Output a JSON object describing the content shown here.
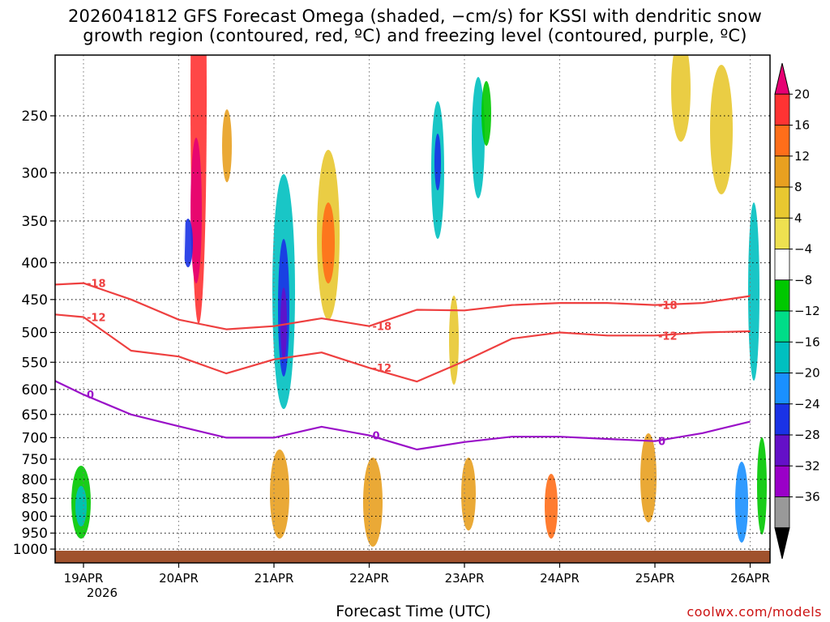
{
  "title_line1": "2026041812 GFS Forecast Omega (shaded, −cm/s) for KSSI with dendritic snow",
  "title_line2": "growth region (contoured, red, ºC) and freezing level (contoured, purple, ºC)",
  "xlabel": "Forecast Time (UTC)",
  "credit": "coolwx.com/models",
  "chart_data": {
    "type": "heatmap",
    "x_ticks": [
      "19APR",
      "20APR",
      "21APR",
      "22APR",
      "23APR",
      "24APR",
      "25APR",
      "26APR"
    ],
    "x_year": "2026",
    "x_range": [
      "2026-04-18T12",
      "2026-04-26T00"
    ],
    "y_ticks": [
      250,
      300,
      350,
      400,
      450,
      500,
      550,
      600,
      650,
      700,
      750,
      800,
      850,
      900,
      950,
      1000
    ],
    "y_range_hpa": [
      1030,
      200
    ],
    "colorbar": {
      "labels": [
        "20",
        "16",
        "12",
        "8",
        "4",
        "−4",
        "−8",
        "−12",
        "−16",
        "−20",
        "−24",
        "−28",
        "−32",
        "−36"
      ],
      "colors": [
        "#e60073",
        "#ff3333",
        "#ff6e1a",
        "#e8a020",
        "#e8c830",
        "#eee050",
        "#ffffff",
        "#00c800",
        "#00dd88",
        "#00c0c0",
        "#1a90ff",
        "#1a32e6",
        "#6410c8",
        "#9a00c8",
        "#999999",
        "#000000"
      ]
    },
    "contours": {
      "dendritic_red": [
        {
          "label": "-18",
          "x_days": [
            0,
            0.5,
            1.0,
            1.5,
            2.0,
            2.5,
            3.0,
            3.5,
            4.0,
            4.5,
            5.0,
            5.5,
            6.0,
            6.5,
            7.0,
            7.5
          ],
          "y_hpa": [
            429,
            427,
            450,
            480,
            495,
            490,
            478,
            490,
            465,
            466,
            458,
            455,
            455,
            458,
            455,
            445
          ]
        },
        {
          "label": "-12",
          "x_days": [
            0,
            0.5,
            1.0,
            1.5,
            2.0,
            2.5,
            3.0,
            3.5,
            4.0,
            4.5,
            5.0,
            5.5,
            6.0,
            6.5,
            7.0,
            7.5
          ],
          "y_hpa": [
            472,
            476,
            530,
            540,
            570,
            545,
            533,
            560,
            585,
            548,
            510,
            500,
            505,
            505,
            500,
            498
          ]
        }
      ],
      "freezing_purple": [
        {
          "label": "0",
          "x_days": [
            0,
            0.5,
            1.0,
            1.5,
            2.0,
            2.5,
            3.0,
            3.5,
            4.0,
            4.5,
            5.0,
            5.5,
            6.0,
            6.5,
            7.0,
            7.5
          ],
          "y_hpa": [
            584,
            610,
            650,
            675,
            700,
            700,
            676,
            695,
            727,
            710,
            698,
            698,
            703,
            708,
            690,
            665
          ]
        }
      ]
    }
  }
}
